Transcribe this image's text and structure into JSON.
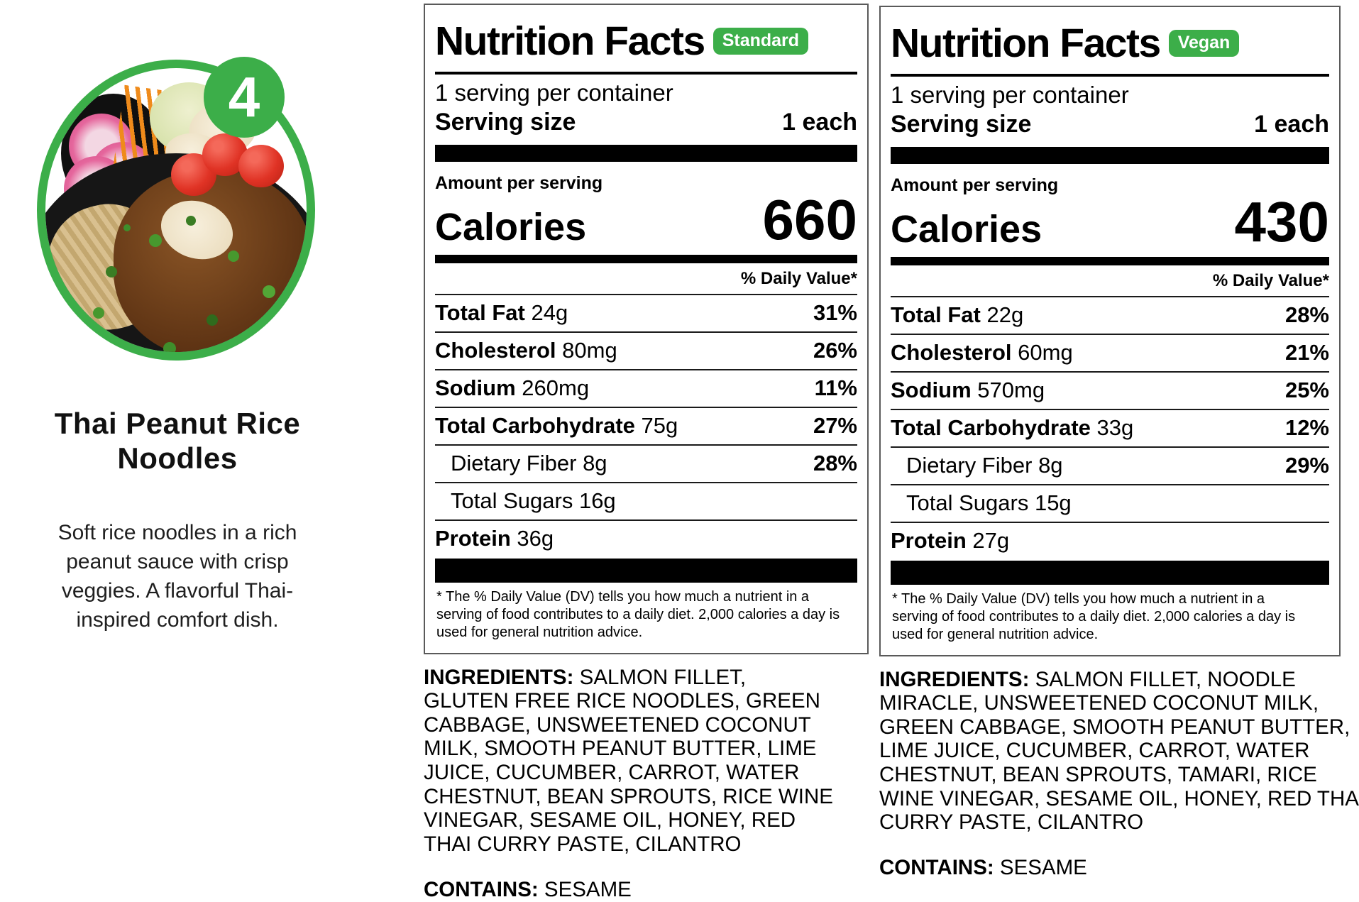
{
  "colors": {
    "accent_green": "#3CAE49",
    "text": "#000000",
    "background": "#FFFFFF"
  },
  "item": {
    "number": "4",
    "name": "Thai Peanut Rice Noodles",
    "description": "Soft rice noodles in a rich peanut sauce with crisp veggies. A flavorful Thai-inspired comfort dish."
  },
  "labels": [
    {
      "variant": "Standard",
      "title": "Nutrition Facts",
      "servings_per_container": "1 serving per container",
      "serving_size_label": "Serving size",
      "serving_size_value": "1 each",
      "amount_per_serving": "Amount per serving",
      "calories_label": "Calories",
      "calories_value": "660",
      "daily_value_header": "% Daily Value*",
      "rows": [
        {
          "name": "Total Fat",
          "amount": "24g",
          "dv": "31%"
        },
        {
          "name": "Cholesterol",
          "amount": "80mg",
          "dv": "26%"
        },
        {
          "name": "Sodium",
          "amount": "260mg",
          "dv": "11%"
        },
        {
          "name": "Total Carbohydrate",
          "amount": "75g",
          "dv": "27%"
        },
        {
          "name": "Dietary Fiber",
          "amount": "8g",
          "dv": "28%"
        },
        {
          "name": "Total Sugars",
          "amount": "16g",
          "dv": ""
        },
        {
          "name": "Protein",
          "amount": "36g",
          "dv": ""
        }
      ],
      "footnote": "* The % Daily Value (DV) tells you how much a nutrient in a serving of food contributes to a daily diet. 2,000 calories a day is used for general nutrition advice.",
      "ingredients_label": "INGREDIENTS:",
      "ingredients": "SALMON FILLET, GLUTEN FREE RICE NOODLES, GREEN CABBAGE, UNSWEETENED COCONUT MILK, SMOOTH PEANUT BUTTER, LIME JUICE, CUCUMBER, CARROT, WATER CHESTNUT, BEAN SPROUTS, RICE WINE VINEGAR, SESAME OIL, HONEY, RED THAI CURRY PASTE, CILANTRO",
      "contains_label": "CONTAINS:",
      "contains": "SESAME"
    },
    {
      "variant": "Vegan",
      "title": "Nutrition Facts",
      "servings_per_container": "1 serving per container",
      "serving_size_label": "Serving size",
      "serving_size_value": "1 each",
      "amount_per_serving": "Amount per serving",
      "calories_label": "Calories",
      "calories_value": "430",
      "daily_value_header": "% Daily Value*",
      "rows": [
        {
          "name": "Total Fat",
          "amount": "22g",
          "dv": "28%"
        },
        {
          "name": "Cholesterol",
          "amount": "60mg",
          "dv": "21%"
        },
        {
          "name": "Sodium",
          "amount": "570mg",
          "dv": "25%"
        },
        {
          "name": "Total Carbohydrate",
          "amount": "33g",
          "dv": "12%"
        },
        {
          "name": "Dietary Fiber",
          "amount": "8g",
          "dv": "29%"
        },
        {
          "name": "Total Sugars",
          "amount": "15g",
          "dv": ""
        },
        {
          "name": "Protein",
          "amount": "27g",
          "dv": ""
        }
      ],
      "footnote": "* The % Daily Value (DV) tells you how much a nutrient in a serving of food contributes to a daily diet. 2,000 calories a day is used for general nutrition advice.",
      "ingredients_label": "INGREDIENTS:",
      "ingredients": "SALMON FILLET, NOODLE MIRACLE, UNSWEETENED COCONUT MILK, GREEN CABBAGE, SMOOTH PEANUT BUTTER, LIME JUICE, CUCUMBER, CARROT, WATER CHESTNUT, BEAN SPROUTS, TAMARI, RICE WINE VINEGAR, SESAME OIL, HONEY, RED THAI CURRY PASTE, CILANTRO",
      "contains_label": "CONTAINS:",
      "contains": "SESAME"
    }
  ]
}
